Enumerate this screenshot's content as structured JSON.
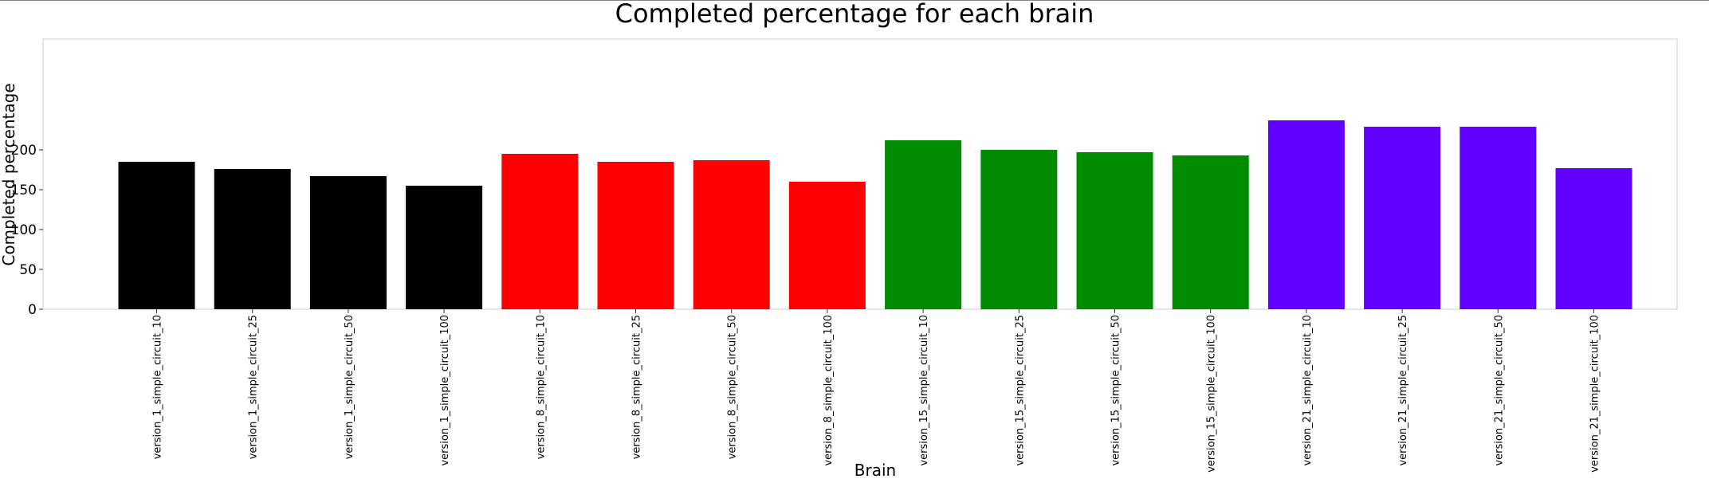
{
  "chart_data": {
    "type": "bar",
    "title": "Completed percentage for each brain",
    "xlabel": "Brain",
    "ylabel": "Completed percentage",
    "ylim": [
      0,
      248
    ],
    "yticks": [
      0,
      50,
      100,
      150,
      200
    ],
    "grid": false,
    "categories": [
      "version_1_simple_circuit_10",
      "version_1_simple_circuit_25",
      "version_1_simple_circuit_50",
      "version_1_simple_circuit_100",
      "version_8_simple_circuit_10",
      "version_8_simple_circuit_25",
      "version_8_simple_circuit_50",
      "version_8_simple_circuit_100",
      "version_15_simple_circuit_10",
      "version_15_simple_circuit_25",
      "version_15_simple_circuit_50",
      "version_15_simple_circuit_100",
      "version_21_simple_circuit_10",
      "version_21_simple_circuit_25",
      "version_21_simple_circuit_50",
      "version_21_simple_circuit_100"
    ],
    "values": [
      185,
      176,
      167,
      155,
      195,
      185,
      187,
      160,
      212,
      200,
      197,
      193,
      237,
      229,
      229,
      177
    ],
    "colors": [
      "#000000",
      "#000000",
      "#000000",
      "#000000",
      "#ff0000",
      "#ff0000",
      "#ff0000",
      "#ff0000",
      "#008b00",
      "#008b00",
      "#008b00",
      "#008b00",
      "#6200ff",
      "#6200ff",
      "#6200ff",
      "#6200ff"
    ]
  }
}
